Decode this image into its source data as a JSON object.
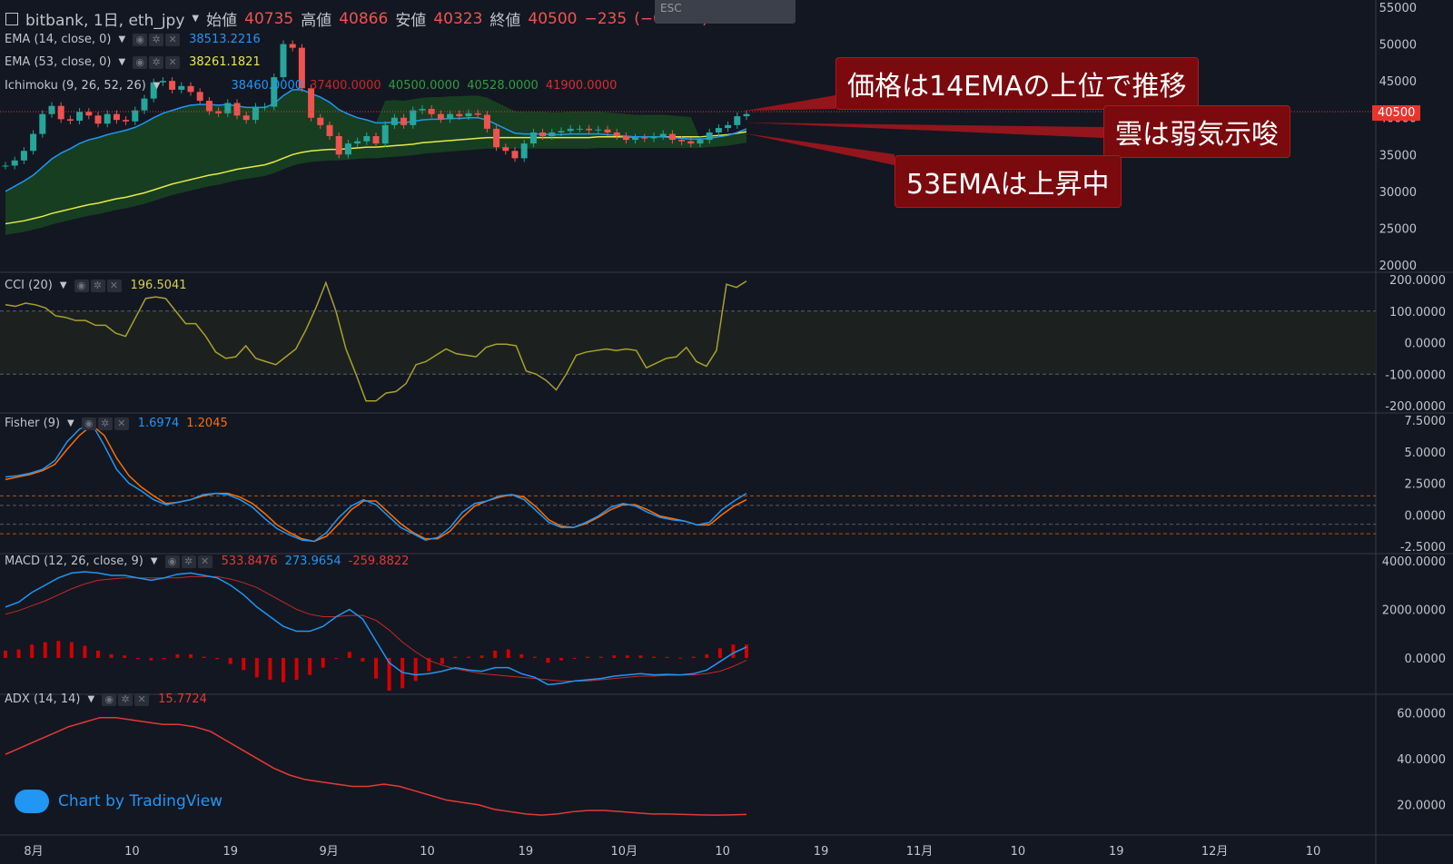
{
  "header": {
    "symbol": "bitbank, 1日, eth_jpy",
    "open_label": "始値",
    "open": "40735",
    "high_label": "高値",
    "high": "40866",
    "low_label": "安値",
    "low": "40323",
    "close_label": "終値",
    "close": "40500",
    "change": "−235",
    "change_pct": "(−0.58%)",
    "overlay_hint": "ESC"
  },
  "indicators": {
    "ema14": {
      "label": "EMA (14, close, 0)",
      "value": "38513.2216"
    },
    "ema53": {
      "label": "EMA (53, close, 0)",
      "value": "38261.1821"
    },
    "ichimoku": {
      "label": "Ichimoku (9, 26, 52, 26)",
      "v1": "38460.0000",
      "v2": "37400.0000",
      "v3": "40500.0000",
      "v4": "40528.0000",
      "v5": "41900.0000"
    },
    "cci": {
      "label": "CCI (20)",
      "value": "196.5041"
    },
    "fisher": {
      "label": "Fisher (9)",
      "v1": "1.6974",
      "v2": "1.2045"
    },
    "macd": {
      "label": "MACD (12, 26, close, 9)",
      "v1": "533.8476",
      "v2": "273.9654",
      "v3": "-259.8822"
    },
    "adx": {
      "label": "ADX (14, 14)",
      "value": "15.7724"
    }
  },
  "annotations": {
    "a1": "価格は14EMAの上位で推移",
    "a2": "雲は弱気示唆",
    "a3": "53EMAは上昇中"
  },
  "last_price": "40500",
  "brand": "Chart by TradingView",
  "colors": {
    "up": "#26a69a",
    "down": "#ef5350",
    "ema14": "#2196f3",
    "ema53": "#e8e84a",
    "cci": "#a8a030",
    "fisherA": "#2196f3",
    "fisherB": "#ff6d00",
    "macd": "#2196f3",
    "signal": "#c62828",
    "adx": "#e53935",
    "cloud": "#1b5e20"
  },
  "chart_data": [
    {
      "type": "candlestick",
      "title": "bitbank, 1日, eth_jpy",
      "y_ticks": [
        "55000",
        "50000",
        "45000",
        "40000",
        "35000",
        "30000",
        "25000",
        "20000"
      ],
      "ylim": [
        20000,
        55000
      ],
      "x_ticks": [
        "8月",
        "10",
        "19",
        "9月",
        "10",
        "19",
        "10月",
        "10",
        "19",
        "11月",
        "10",
        "19",
        "12月",
        "10"
      ],
      "close": [
        33500,
        34200,
        35500,
        37800,
        40500,
        41600,
        39800,
        39600,
        40800,
        40300,
        39200,
        40500,
        39700,
        39500,
        41000,
        42600,
        44800,
        45000,
        43800,
        44300,
        43500,
        42300,
        40900,
        40600,
        42000,
        40300,
        39700,
        41500,
        41500,
        45500,
        50000,
        49500,
        44000,
        40000,
        39000,
        37500,
        35000,
        36500,
        36800,
        37500,
        36500,
        39000,
        40000,
        39000,
        41000,
        41200,
        40500,
        39800,
        40500,
        40200,
        40600,
        40400,
        38500,
        36000,
        35500,
        34500,
        36500,
        38000,
        37500,
        38000,
        38200,
        38500,
        38500,
        38300,
        38400,
        38000,
        37500,
        37000,
        37300,
        37200,
        37500,
        37800,
        37000,
        36800,
        36500,
        37000,
        38000,
        38600,
        39000,
        40200,
        40500
      ],
      "ema14": [
        30000,
        30700,
        31400,
        32200,
        33300,
        34400,
        35200,
        35800,
        36500,
        37000,
        37300,
        37700,
        38000,
        38300,
        38700,
        39300,
        40000,
        40600,
        41000,
        41400,
        41700,
        41800,
        41800,
        41700,
        41800,
        41600,
        41400,
        41400,
        41400,
        41900,
        43000,
        43800,
        43800,
        43300,
        42800,
        42100,
        41100,
        40500,
        40000,
        39700,
        39300,
        39300,
        39400,
        39300,
        39500,
        39700,
        39800,
        39800,
        39900,
        39900,
        40000,
        40000,
        39700,
        39100,
        38500,
        37900,
        37800,
        37800,
        37800,
        37700,
        37700,
        37800,
        37800,
        37800,
        37800,
        37700,
        37600,
        37500,
        37400,
        37400,
        37400,
        37400,
        37300,
        37200,
        37100,
        37100,
        37200,
        37400,
        37600,
        38000,
        38500
      ],
      "ema53": [
        25600,
        25800,
        26000,
        26300,
        26600,
        27000,
        27300,
        27600,
        27900,
        28200,
        28400,
        28700,
        29000,
        29200,
        29500,
        29800,
        30200,
        30600,
        31000,
        31300,
        31600,
        31900,
        32200,
        32400,
        32700,
        33000,
        33200,
        33400,
        33600,
        34000,
        34500,
        35000,
        35300,
        35500,
        35600,
        35700,
        35700,
        35800,
        35900,
        36000,
        36000,
        36100,
        36200,
        36300,
        36400,
        36600,
        36700,
        36800,
        36900,
        37000,
        37100,
        37200,
        37300,
        37300,
        37300,
        37300,
        37300,
        37300,
        37300,
        37300,
        37300,
        37300,
        37300,
        37300,
        37400,
        37400,
        37400,
        37400,
        37400,
        37400,
        37400,
        37400,
        37400,
        37400,
        37400,
        37400,
        37500,
        37600,
        37700,
        37900,
        38100
      ]
    },
    {
      "type": "line",
      "title": "CCI (20)",
      "y_ticks": [
        "200.0000",
        "100.0000",
        "0.0000",
        "-100.0000",
        "-200.0000"
      ],
      "ylim": [
        -200,
        200
      ],
      "values": [
        120,
        115,
        125,
        120,
        110,
        85,
        80,
        70,
        70,
        55,
        55,
        30,
        20,
        80,
        140,
        145,
        140,
        100,
        60,
        60,
        20,
        -30,
        -50,
        -45,
        -10,
        -50,
        -60,
        -70,
        -45,
        -20,
        40,
        110,
        190,
        100,
        -20,
        -100,
        -185,
        -185,
        -160,
        -155,
        -130,
        -70,
        -60,
        -40,
        -20,
        -35,
        -40,
        -45,
        -15,
        -5,
        -5,
        -10,
        -90,
        -100,
        -120,
        -150,
        -100,
        -40,
        -30,
        -25,
        -20,
        -25,
        -20,
        -25,
        -80,
        -65,
        -50,
        -45,
        -15,
        -60,
        -75,
        -25,
        185,
        175,
        195
      ],
      "bands": [
        100,
        -100
      ]
    },
    {
      "type": "line",
      "title": "Fisher (9)",
      "y_ticks": [
        "7.5000",
        "5.0000",
        "2.5000",
        "0.0000",
        "-2.5000"
      ],
      "ylim": [
        -2.5,
        7.5
      ],
      "series": [
        {
          "values": [
            3.0,
            3.1,
            3.3,
            3.6,
            4.3,
            5.8,
            6.8,
            7.2,
            5.5,
            3.6,
            2.5,
            1.9,
            1.2,
            0.8,
            1.0,
            1.2,
            1.6,
            1.7,
            1.6,
            1.2,
            0.6,
            -0.3,
            -1.1,
            -1.6,
            -2.0,
            -2.1,
            -1.4,
            -0.2,
            0.7,
            1.2,
            0.8,
            -0.1,
            -1.0,
            -1.5,
            -2.0,
            -1.8,
            -1.0,
            0.2,
            0.9,
            1.1,
            1.5,
            1.6,
            1.2,
            0.3,
            -0.6,
            -1.0,
            -1.0,
            -0.6,
            -0.1,
            0.6,
            0.9,
            0.7,
            0.2,
            -0.2,
            -0.4,
            -0.5,
            -0.8,
            -0.6,
            0.4,
            1.1,
            1.7
          ]
        },
        {
          "values": [
            2.8,
            3.0,
            3.2,
            3.5,
            4.0,
            5.2,
            6.3,
            7.1,
            6.3,
            4.5,
            3.1,
            2.2,
            1.5,
            0.9,
            1.0,
            1.2,
            1.5,
            1.7,
            1.7,
            1.4,
            0.9,
            0.1,
            -0.8,
            -1.4,
            -1.9,
            -2.1,
            -1.7,
            -0.7,
            0.4,
            1.1,
            1.1,
            0.2,
            -0.7,
            -1.4,
            -1.9,
            -1.9,
            -1.3,
            -0.2,
            0.7,
            1.1,
            1.4,
            1.6,
            1.4,
            0.6,
            -0.4,
            -0.9,
            -1.0,
            -0.7,
            -0.2,
            0.4,
            0.8,
            0.8,
            0.4,
            -0.1,
            -0.3,
            -0.5,
            -0.8,
            -0.8,
            0.0,
            0.7,
            1.2
          ]
        }
      ],
      "bands": [
        1.5,
        0.75,
        -0.75,
        -1.5
      ]
    },
    {
      "type": "bar",
      "title": "MACD (12, 26, close, 9)",
      "y_ticks": [
        "4000.0000",
        "2000.0000",
        "0.0000"
      ],
      "ylim": [
        -1200,
        4000
      ],
      "macd": [
        2100,
        2300,
        2700,
        3000,
        3300,
        3500,
        3550,
        3500,
        3400,
        3400,
        3300,
        3200,
        3300,
        3450,
        3500,
        3400,
        3300,
        3000,
        2600,
        2100,
        1700,
        1300,
        1100,
        1100,
        1300,
        1700,
        2000,
        1600,
        700,
        -200,
        -600,
        -700,
        -650,
        -550,
        -400,
        -500,
        -550,
        -400,
        -400,
        -650,
        -800,
        -1100,
        -1050,
        -950,
        -900,
        -850,
        -750,
        -700,
        -650,
        -700,
        -680,
        -700,
        -650,
        -500,
        -150,
        200,
        450
      ],
      "signal": [
        1800,
        1950,
        2150,
        2350,
        2600,
        2850,
        3050,
        3200,
        3250,
        3300,
        3300,
        3300,
        3300,
        3300,
        3350,
        3350,
        3350,
        3250,
        3100,
        2900,
        2600,
        2300,
        2000,
        1800,
        1700,
        1700,
        1750,
        1750,
        1550,
        1150,
        650,
        250,
        -100,
        -300,
        -450,
        -550,
        -650,
        -700,
        -750,
        -800,
        -850,
        -900,
        -950,
        -950,
        -950,
        -900,
        -850,
        -800,
        -750,
        -750,
        -720,
        -710,
        -700,
        -650,
        -550,
        -350,
        -100
      ],
      "hist": [
        300,
        350,
        550,
        650,
        700,
        650,
        500,
        300,
        150,
        100,
        0,
        -100,
        0,
        150,
        150,
        50,
        -50,
        -250,
        -500,
        -800,
        -900,
        -1000,
        -900,
        -700,
        -400,
        0,
        250,
        -150,
        -850,
        -1350,
        -1250,
        -950,
        -550,
        -250,
        50,
        50,
        100,
        300,
        350,
        150,
        50,
        -200,
        -100,
        0,
        50,
        50,
        100,
        100,
        100,
        50,
        40,
        10,
        50,
        150,
        400,
        550,
        550
      ]
    },
    {
      "type": "line",
      "title": "ADX (14, 14)",
      "y_ticks": [
        "60.0000",
        "40.0000",
        "20.0000"
      ],
      "ylim": [
        10,
        65
      ],
      "values": [
        42,
        45,
        48,
        51,
        54,
        56,
        58,
        58,
        57,
        56,
        55,
        55,
        54,
        52,
        48,
        44,
        40,
        36,
        33,
        31,
        30,
        29,
        28,
        28,
        29,
        28,
        26,
        24,
        22,
        21,
        20,
        18,
        17,
        16,
        15.5,
        16,
        17,
        17.5,
        17.5,
        17,
        16.5,
        16,
        16,
        15.8,
        15.6,
        15.5,
        15.6,
        15.8
      ]
    }
  ]
}
